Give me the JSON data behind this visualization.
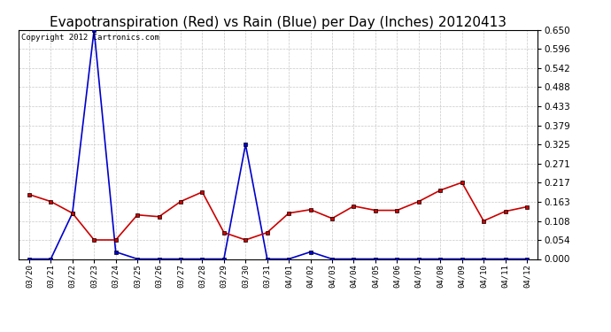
{
  "title": "Evapotranspiration (Red) vs Rain (Blue) per Day (Inches) 20120413",
  "copyright_text": "Copyright 2012 Cartronics.com",
  "labels": [
    "03/20",
    "03/21",
    "03/22",
    "03/23",
    "03/24",
    "03/25",
    "03/26",
    "03/27",
    "03/28",
    "03/29",
    "03/30",
    "03/31",
    "04/01",
    "04/02",
    "04/03",
    "04/04",
    "04/05",
    "04/06",
    "04/07",
    "04/08",
    "04/09",
    "04/10",
    "04/11",
    "04/12"
  ],
  "red_data": [
    0.183,
    0.163,
    0.13,
    0.054,
    0.054,
    0.125,
    0.12,
    0.163,
    0.19,
    0.075,
    0.054,
    0.075,
    0.13,
    0.14,
    0.115,
    0.15,
    0.138,
    0.138,
    0.163,
    0.195,
    0.217,
    0.108,
    0.135,
    0.148
  ],
  "blue_data": [
    0.0,
    0.0,
    0.13,
    0.65,
    0.02,
    0.0,
    0.0,
    0.0,
    0.0,
    0.0,
    0.325,
    0.0,
    0.0,
    0.02,
    0.0,
    0.0,
    0.0,
    0.0,
    0.0,
    0.0,
    0.0,
    0.0,
    0.0,
    0.0
  ],
  "ylim": [
    0.0,
    0.65
  ],
  "yticks": [
    0.0,
    0.054,
    0.108,
    0.163,
    0.217,
    0.271,
    0.325,
    0.379,
    0.433,
    0.488,
    0.542,
    0.596,
    0.65
  ],
  "bg_color": "#ffffff",
  "plot_bg_color": "#ffffff",
  "grid_color": "#c8c8c8",
  "red_color": "#cc0000",
  "blue_color": "#0000cc",
  "title_fontsize": 11,
  "copyright_fontsize": 6.5,
  "marker_size": 3.5,
  "line_width": 1.2
}
